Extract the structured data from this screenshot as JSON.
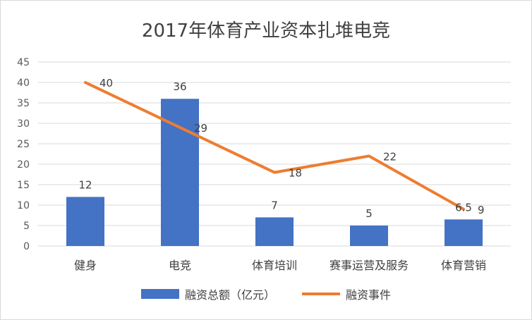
{
  "chart_data": {
    "type": "bar",
    "title": "2017年体育产业资本扎堆电竞",
    "categories": [
      "健身",
      "电竞",
      "体育培训",
      "赛事运营及服务",
      "体育营销"
    ],
    "series": [
      {
        "name": "融资总额（亿元）",
        "type": "bar",
        "color": "#4472c4",
        "values": [
          12,
          36,
          7,
          5,
          6.5
        ]
      },
      {
        "name": "融资事件",
        "type": "line",
        "color": "#ed7d31",
        "values": [
          40,
          29,
          18,
          22,
          9
        ]
      }
    ],
    "bar_labels": [
      "12",
      "36",
      "7",
      "5",
      "6.5"
    ],
    "line_labels": [
      "40",
      "29",
      "18",
      "22",
      "9"
    ],
    "yticks": [
      "0",
      "5",
      "10",
      "15",
      "20",
      "25",
      "30",
      "35",
      "40",
      "45"
    ],
    "ylim": [
      0,
      45
    ],
    "grid": true,
    "legend_position": "bottom"
  }
}
